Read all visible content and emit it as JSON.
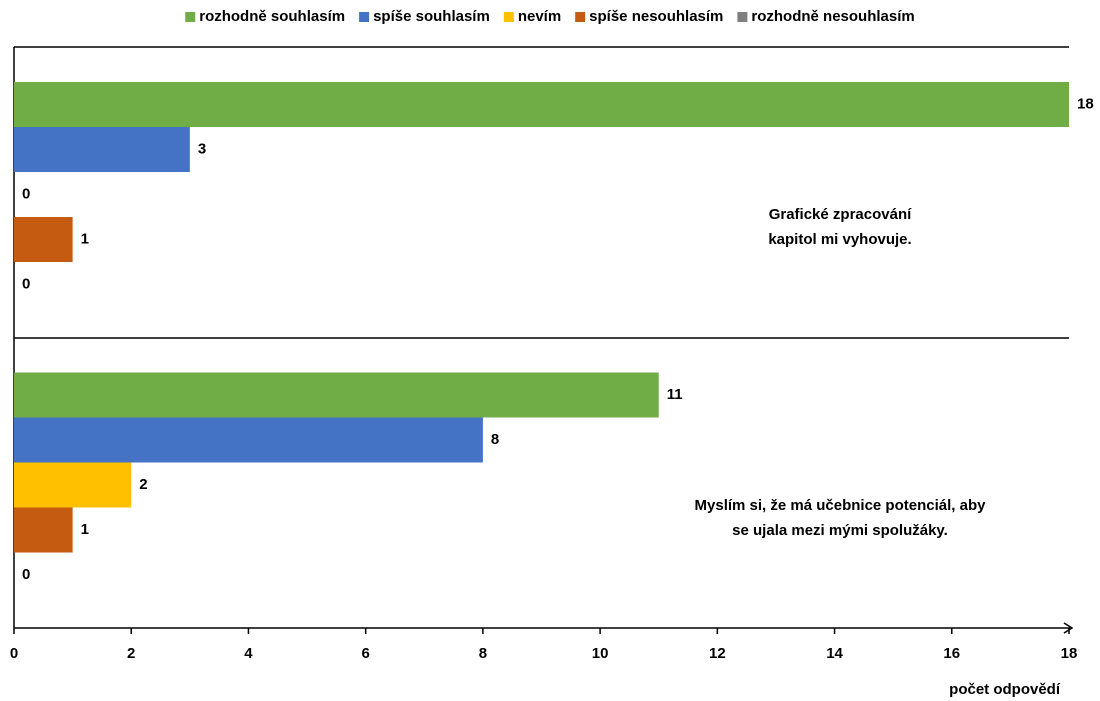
{
  "chart_data": {
    "type": "barh",
    "categories": [
      "Grafické zpracování\nkapitol mi vyhovuje.",
      "Myslím si, že má učebnice potenciál, aby\nse ujala mezi mými spolužáky."
    ],
    "series": [
      {
        "name": "rozhodně souhlasím",
        "color": "#70ad47",
        "values": [
          18,
          11
        ]
      },
      {
        "name": "spíše souhlasím",
        "color": "#4472c4",
        "values": [
          3,
          8
        ]
      },
      {
        "name": "nevím",
        "color": "#ffc000",
        "values": [
          0,
          2
        ]
      },
      {
        "name": "spíše nesouhlasím",
        "color": "#c55a11",
        "values": [
          1,
          1
        ]
      },
      {
        "name": "rozhodně nesouhlasím",
        "color": "#7f7f7f",
        "values": [
          0,
          0
        ]
      }
    ],
    "xlabel": "počet odpovědí",
    "xlim": [
      0,
      18
    ],
    "xticks": [
      0,
      2,
      4,
      6,
      8,
      10,
      12,
      14,
      16,
      18
    ],
    "legend": "top"
  }
}
